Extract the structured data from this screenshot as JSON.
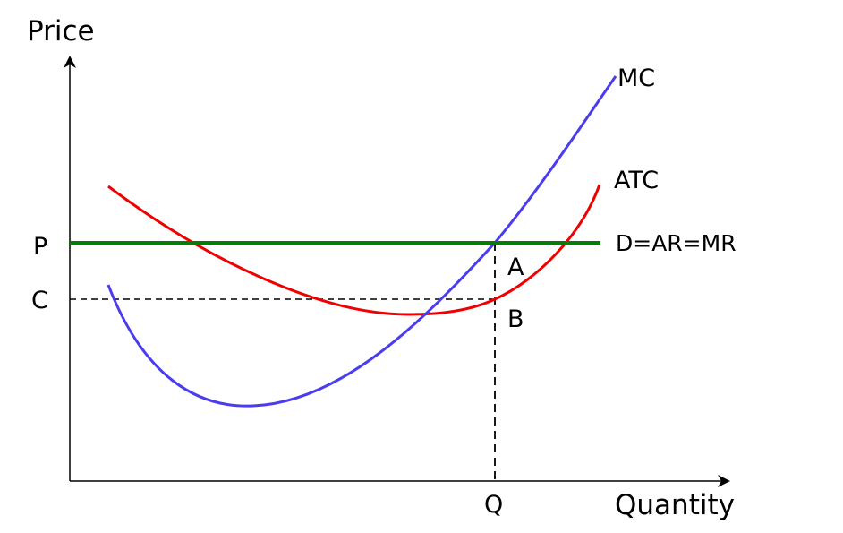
{
  "axes": {
    "y_label": "Price",
    "x_label": "Quantity"
  },
  "curves": {
    "mc": {
      "label": "MC",
      "color": "#4b3cf0"
    },
    "atc": {
      "label": "ATC",
      "color": "#f00000"
    },
    "demand": {
      "label": "D=AR=MR",
      "color": "#0a7a0a"
    }
  },
  "points": {
    "p": "P",
    "c": "C",
    "a": "A",
    "b": "B",
    "q": "Q"
  }
}
